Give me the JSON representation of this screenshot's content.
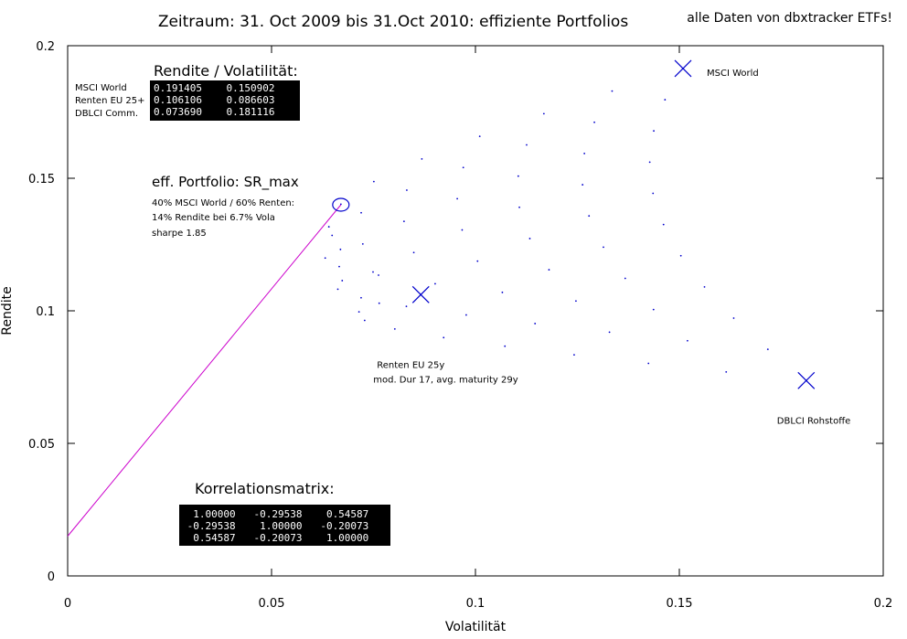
{
  "chart_data": {
    "type": "scatter",
    "title": "Zeitraum: 31. Oct 2009 bis 31.Oct 2010: effiziente Portfolios",
    "subtitle": "alle Daten von dbxtracker ETFs!",
    "xlabel": "Volatilität",
    "ylabel": "Rendite",
    "xlim": [
      0,
      0.2
    ],
    "ylim": [
      0,
      0.2
    ],
    "x_ticks": [
      "0",
      "0.05",
      "0.1",
      "0.15",
      "0.2"
    ],
    "y_ticks": [
      "0",
      "0.05",
      "0.1",
      "0.15",
      "0.2"
    ],
    "grid": false,
    "assets": [
      {
        "name": "MSCI World",
        "volatility": 0.150902,
        "return": 0.191405,
        "label": "MSCI World"
      },
      {
        "name": "Renten EU 25+",
        "volatility": 0.086603,
        "return": 0.106106,
        "label": "Renten EU 25y",
        "sublabel": "mod. Dur 17, avg. maturity 29y"
      },
      {
        "name": "DBLCI Comm.",
        "volatility": 0.181116,
        "return": 0.07369,
        "label": "DBLCI Rohstoffe"
      }
    ],
    "max_sharpe_portfolio": {
      "volatility": 0.067,
      "return": 0.14
    },
    "capital_market_line": {
      "x": [
        0,
        0.067
      ],
      "y": [
        0.015,
        0.14
      ]
    },
    "portfolio_grid_step": 0.1,
    "correlation_matrix": [
      [
        1.0,
        -0.29538,
        0.54587
      ],
      [
        -0.29538,
        1.0,
        -0.20073
      ],
      [
        0.54587,
        -0.20073,
        1.0
      ]
    ],
    "colors": {
      "frontier": "#0000cc",
      "asset_marker": "#0000cc",
      "cml": "#cc00cc",
      "axis": "#000000"
    }
  },
  "annotations": {
    "stats_heading": "Rendite / Volatilität:",
    "stats_names": [
      "MSCI World",
      "Renten EU 25+",
      "DBLCI Comm."
    ],
    "stats_rows": [
      "0.191405    0.150902",
      "0.106106    0.086603",
      "0.073690    0.181116"
    ],
    "eff_heading": "eff. Portfolio: SR_max",
    "eff_lines": [
      "40% MSCI World / 60% Renten:",
      "14% Rendite bei 6.7% Vola",
      "sharpe 1.85"
    ],
    "corr_heading": "Korrelationsmatrix:",
    "corr_rows": [
      "  1.00000   -0.29538    0.54587",
      " -0.29538    1.00000   -0.20073",
      "  0.54587   -0.20073    1.00000"
    ]
  }
}
